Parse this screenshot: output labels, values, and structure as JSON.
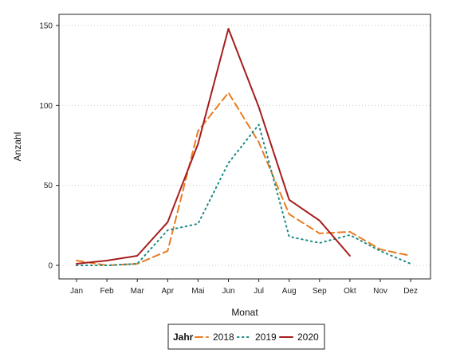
{
  "chart_data": {
    "type": "line",
    "xlabel": "Monat",
    "ylabel": "Anzahl",
    "categories": [
      "Jan",
      "Feb",
      "Mar",
      "Apr",
      "Mai",
      "Jun",
      "Jul",
      "Aug",
      "Sep",
      "Okt",
      "Nov",
      "Dez"
    ],
    "ylim": [
      0,
      150
    ],
    "yticks": [
      0,
      50,
      100,
      150
    ],
    "grid": "horizontal dotted",
    "legend": {
      "title": "Jahr",
      "position": "bottom"
    },
    "series": [
      {
        "name": "2018",
        "color": "#e87d21",
        "dash": "dashed",
        "values": [
          3,
          0,
          1,
          9,
          84,
          108,
          77,
          32,
          20,
          21,
          10,
          6
        ]
      },
      {
        "name": "2019",
        "color": "#1a8a84",
        "dash": "dotted",
        "values": [
          0,
          0,
          1,
          22,
          26,
          64,
          88,
          18,
          14,
          19,
          9,
          1
        ]
      },
      {
        "name": "2020",
        "color": "#a61d1d",
        "dash": "solid",
        "values": [
          1,
          3,
          6,
          27,
          76,
          148,
          99,
          41,
          28,
          6,
          null,
          null
        ]
      }
    ]
  }
}
